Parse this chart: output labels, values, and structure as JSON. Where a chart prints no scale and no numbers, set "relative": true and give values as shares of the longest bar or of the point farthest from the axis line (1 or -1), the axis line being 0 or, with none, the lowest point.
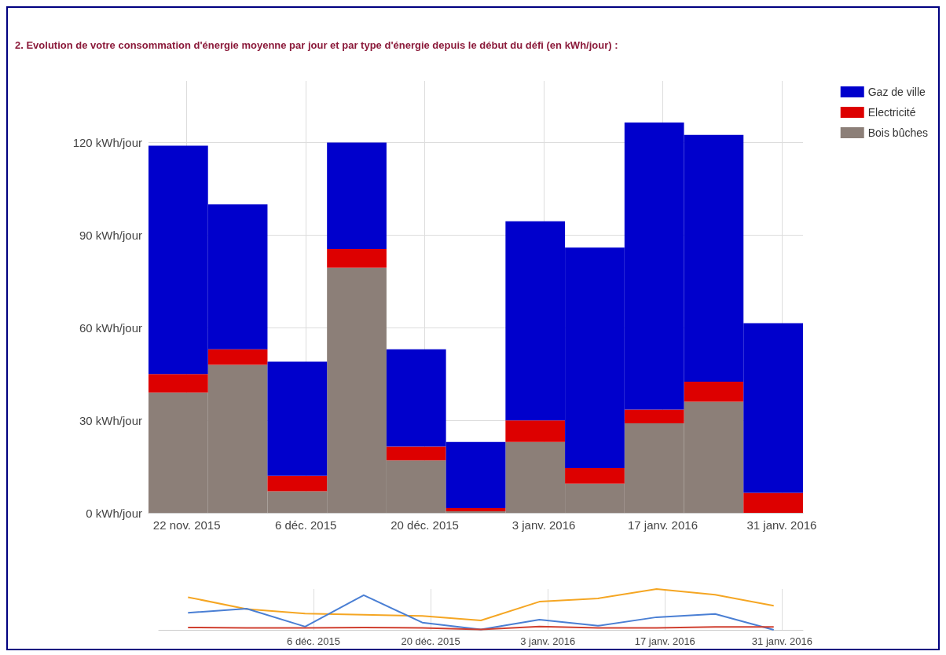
{
  "chart_data": [
    {
      "type": "bar",
      "title": "2. Evolution de votre consommation d'énergie moyenne par jour et par type d'énergie depuis le début du défi (en kWh/jour) :",
      "stacked": true,
      "x": [
        "2015-11-21",
        "2015-11-28",
        "2015-12-05",
        "2015-12-12",
        "2015-12-19",
        "2015-12-26",
        "2016-01-02",
        "2016-01-09",
        "2016-01-16",
        "2016-01-23",
        "2016-01-30"
      ],
      "series": [
        {
          "name": "Bois bûches",
          "color": "#8c7f78",
          "values": [
            39,
            48,
            7,
            79.5,
            17,
            0.5,
            23,
            9.5,
            29,
            36,
            0
          ]
        },
        {
          "name": "Electricité",
          "color": "#dd0000",
          "values": [
            6,
            5,
            5,
            6,
            4.5,
            1,
            7,
            5,
            4.5,
            6.5,
            6.5
          ]
        },
        {
          "name": "Gaz de ville",
          "color": "#0000cc",
          "values": [
            74,
            47,
            37,
            34.5,
            31.5,
            21.5,
            64.5,
            71.5,
            93,
            80,
            55
          ]
        }
      ],
      "xlim": [
        "2015-11-17T12:00",
        "2016-02-02T12:00"
      ],
      "xticks": [
        {
          "value": "2015-11-22",
          "label": "22 nov. 2015"
        },
        {
          "value": "2015-12-06",
          "label": "6 déc. 2015"
        },
        {
          "value": "2015-12-20",
          "label": "20 déc. 2015"
        },
        {
          "value": "2016-01-03",
          "label": "3 janv. 2016"
        },
        {
          "value": "2016-01-17",
          "label": "17 janv. 2016"
        },
        {
          "value": "2016-01-31",
          "label": "31 janv. 2016"
        }
      ],
      "ylim": [
        0,
        140
      ],
      "yticks": [
        {
          "value": 0,
          "label": "0 kWh/jour"
        },
        {
          "value": 30,
          "label": "30 kWh/jour"
        },
        {
          "value": 60,
          "label": "60 kWh/jour"
        },
        {
          "value": 90,
          "label": "90 kWh/jour"
        },
        {
          "value": 120,
          "label": "120 kWh/jour"
        }
      ],
      "grid": true,
      "legend": "top right"
    },
    {
      "type": "line",
      "relative": true,
      "tick_labels": "x",
      "x": [
        "2015-11-21",
        "2015-11-28",
        "2015-12-05",
        "2015-12-12",
        "2015-12-19",
        "2015-12-26",
        "2016-01-02",
        "2016-01-09",
        "2016-01-16",
        "2016-01-23",
        "2016-01-30"
      ],
      "series": [
        {
          "color": "#f5a623",
          "values": [
            0.8,
            0.51,
            0.4,
            0.37,
            0.34,
            0.23,
            0.69,
            0.77,
            1,
            0.86,
            0.59
          ]
        },
        {
          "color": "#4a7fd4",
          "values": [
            0.42,
            0.52,
            0.08,
            0.85,
            0.18,
            0.01,
            0.25,
            0.1,
            0.31,
            0.39,
            0
          ]
        },
        {
          "color": "#d04030",
          "values": [
            0.06,
            0.05,
            0.05,
            0.06,
            0.05,
            0.01,
            0.08,
            0.05,
            0.05,
            0.07,
            0.07
          ]
        }
      ],
      "xlim": [
        "2015-11-17T12:00",
        "2016-02-02T12:00"
      ],
      "xticks": [
        {
          "value": "2015-12-06",
          "label": "6 déc. 2015"
        },
        {
          "value": "2015-12-20",
          "label": "20 déc. 2015"
        },
        {
          "value": "2016-01-03",
          "label": "3 janv. 2016"
        },
        {
          "value": "2016-01-17",
          "label": "17 janv. 2016"
        },
        {
          "value": "2016-01-31",
          "label": "31 janv. 2016"
        }
      ],
      "grid": "x",
      "marker": "none"
    }
  ]
}
